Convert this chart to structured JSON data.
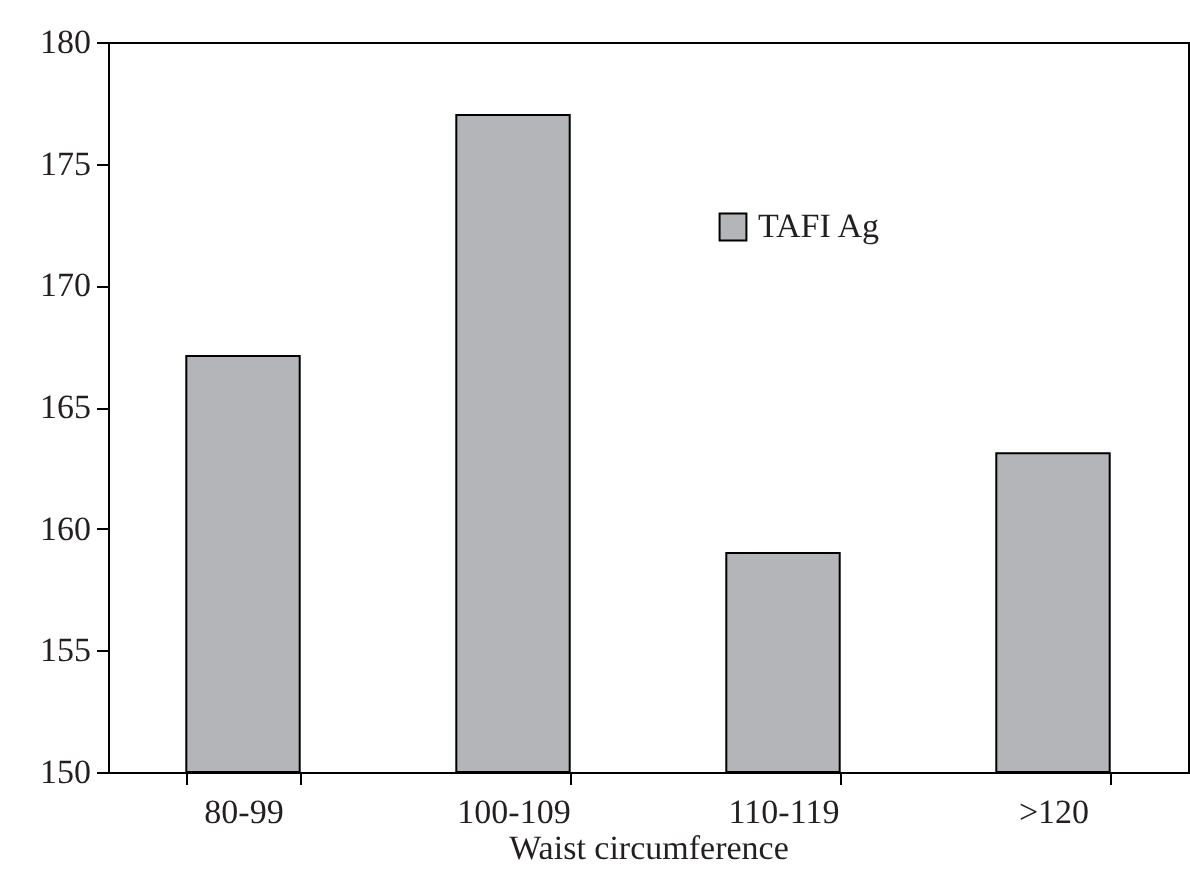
{
  "chart_data": {
    "type": "bar",
    "xlabel": "Waist circumference",
    "categories": [
      "80-99",
      "100-109",
      "110-119",
      ">120"
    ],
    "series": [
      {
        "name": "TAFI Ag",
        "color": "#b4b5b8",
        "values": [
          167.1,
          177,
          159,
          163.1
        ]
      }
    ],
    "ylim": [
      150,
      180
    ],
    "yticks": [
      150,
      155,
      160,
      165,
      170,
      175,
      180
    ],
    "grid": false,
    "legend": "top right"
  }
}
